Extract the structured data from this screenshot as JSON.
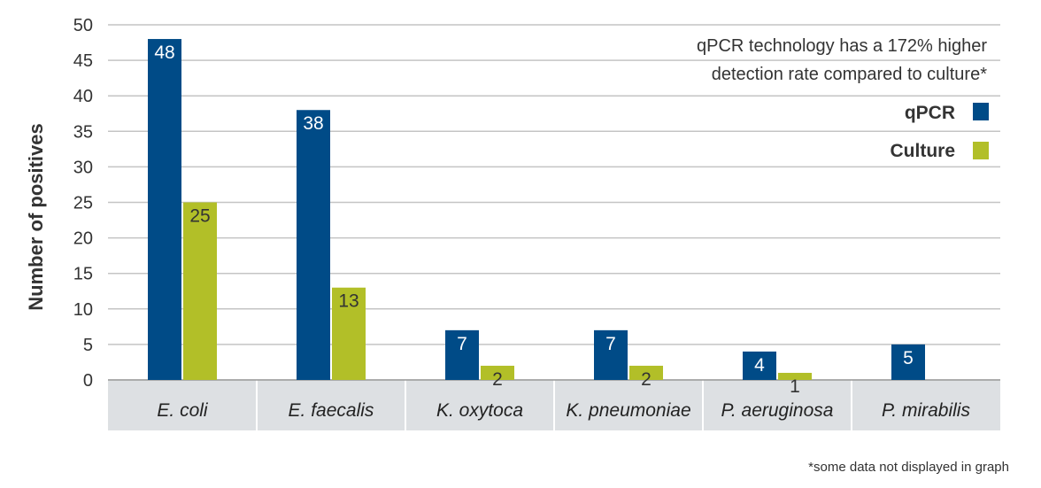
{
  "chart_data": {
    "type": "bar",
    "title": "",
    "xlabel": "",
    "ylabel": "Number of positives",
    "ylim": [
      0,
      50
    ],
    "yticks": [
      0,
      5,
      10,
      15,
      20,
      25,
      30,
      35,
      40,
      45,
      50
    ],
    "grid": true,
    "legend_position": "top-right",
    "categories": [
      "E. coli",
      "E. faecalis",
      "K. oxytoca",
      "K. pneumoniae",
      "P. aeruginosa",
      "P. mirabilis"
    ],
    "series": [
      {
        "name": "qPCR",
        "color": "#004b87",
        "label_color": "#ffffff",
        "values": [
          48,
          38,
          7,
          7,
          4,
          5
        ]
      },
      {
        "name": "Culture",
        "color": "#b2bf28",
        "label_color": "#333333",
        "values": [
          25,
          13,
          2,
          2,
          1,
          null
        ]
      }
    ],
    "annotation": [
      "qPCR technology has a 172% higher",
      "detection rate compared to culture*"
    ],
    "footnote": "*some data not displayed in graph",
    "category_band_color": "#dde0e3",
    "gridline_color": "#c4c4c4"
  }
}
